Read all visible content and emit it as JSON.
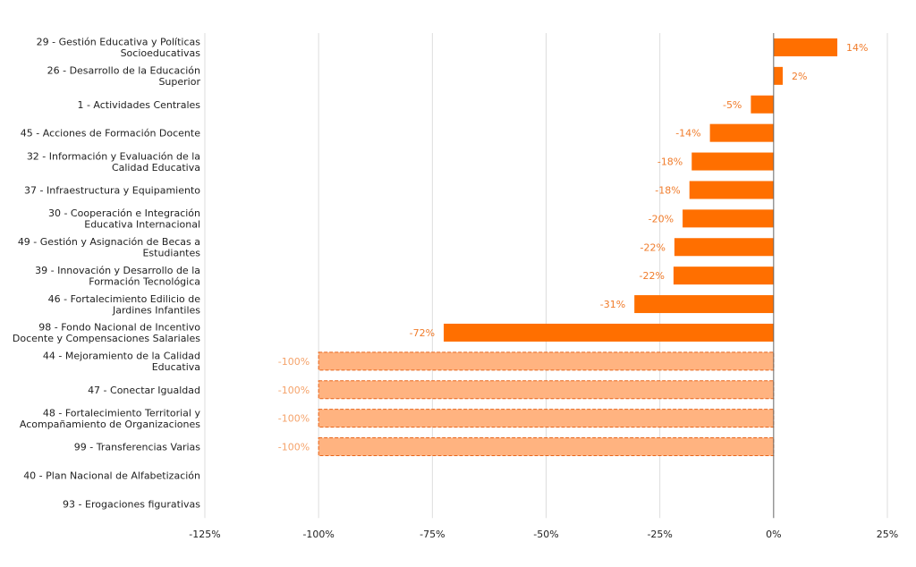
{
  "chart_data": {
    "type": "bar",
    "orientation": "horizontal",
    "title": "",
    "xlabel": "",
    "ylabel": "",
    "xlim": [
      -125,
      25
    ],
    "x_ticks": [
      -125,
      -100,
      -75,
      -50,
      -25,
      0,
      25
    ],
    "x_tick_labels": [
      "-125%",
      "-100%",
      "-75%",
      "-50%",
      "-25%",
      "0%",
      "25%"
    ],
    "grid": "vertical",
    "colors": {
      "bar": "#ff6f00",
      "faded_bar": "#ffb380",
      "faded_border": "#e8651a",
      "label": "#f07b2a",
      "faded_label": "#f5a36b",
      "grid": "#dddddd",
      "zero_line": "#666666"
    },
    "categories": [
      {
        "label": [
          "29 - Gestión Educativa y Políticas",
          "Socioeducativas"
        ],
        "value": 14,
        "value_label": "14%",
        "style": "solid"
      },
      {
        "label": [
          "26 - Desarrollo de la Educación",
          "Superior"
        ],
        "value": 2,
        "value_label": "2%",
        "style": "solid"
      },
      {
        "label": [
          "1 - Actividades Centrales"
        ],
        "value": -5,
        "value_label": "-5%",
        "style": "solid"
      },
      {
        "label": [
          "45 - Acciones de Formación Docente"
        ],
        "value": -14,
        "value_label": "-14%",
        "style": "solid"
      },
      {
        "label": [
          "32 - Información y Evaluación de la",
          "Calidad Educativa"
        ],
        "value": -18,
        "value_label": "-18%",
        "style": "solid"
      },
      {
        "label": [
          "37 - Infraestructura y Equipamiento"
        ],
        "value": -18.5,
        "value_label": "-18%",
        "style": "solid"
      },
      {
        "label": [
          "30 - Cooperación e Integración",
          "Educativa Internacional"
        ],
        "value": -20,
        "value_label": "-20%",
        "style": "solid"
      },
      {
        "label": [
          "49 - Gestión y Asignación de Becas a",
          "Estudiantes"
        ],
        "value": -21.8,
        "value_label": "-22%",
        "style": "solid"
      },
      {
        "label": [
          "39 - Innovación y Desarrollo de la",
          "Formación Tecnológica"
        ],
        "value": -22,
        "value_label": "-22%",
        "style": "solid"
      },
      {
        "label": [
          "46 - Fortalecimiento Edilicio de",
          "Jardines Infantiles"
        ],
        "value": -30.6,
        "value_label": "-31%",
        "style": "solid"
      },
      {
        "label": [
          "98 - Fondo Nacional de Incentivo",
          "Docente y Compensaciones Salariales"
        ],
        "value": -72.5,
        "value_label": "-72%",
        "style": "solid"
      },
      {
        "label": [
          "44 - Mejoramiento de la Calidad",
          "Educativa"
        ],
        "value": -100,
        "value_label": "-100%",
        "style": "faded"
      },
      {
        "label": [
          "47 - Conectar Igualdad"
        ],
        "value": -100,
        "value_label": "-100%",
        "style": "faded"
      },
      {
        "label": [
          "48 - Fortalecimiento Territorial y",
          "Acompañamiento de Organizaciones"
        ],
        "value": -100,
        "value_label": "-100%",
        "style": "faded"
      },
      {
        "label": [
          "99 - Transferencias Varias"
        ],
        "value": -100,
        "value_label": "-100%",
        "style": "faded"
      },
      {
        "label": [
          "40 - Plan Nacional de Alfabetización"
        ],
        "value": null,
        "value_label": "",
        "style": "none"
      },
      {
        "label": [
          "93 - Erogaciones figurativas"
        ],
        "value": null,
        "value_label": "",
        "style": "none"
      }
    ]
  }
}
